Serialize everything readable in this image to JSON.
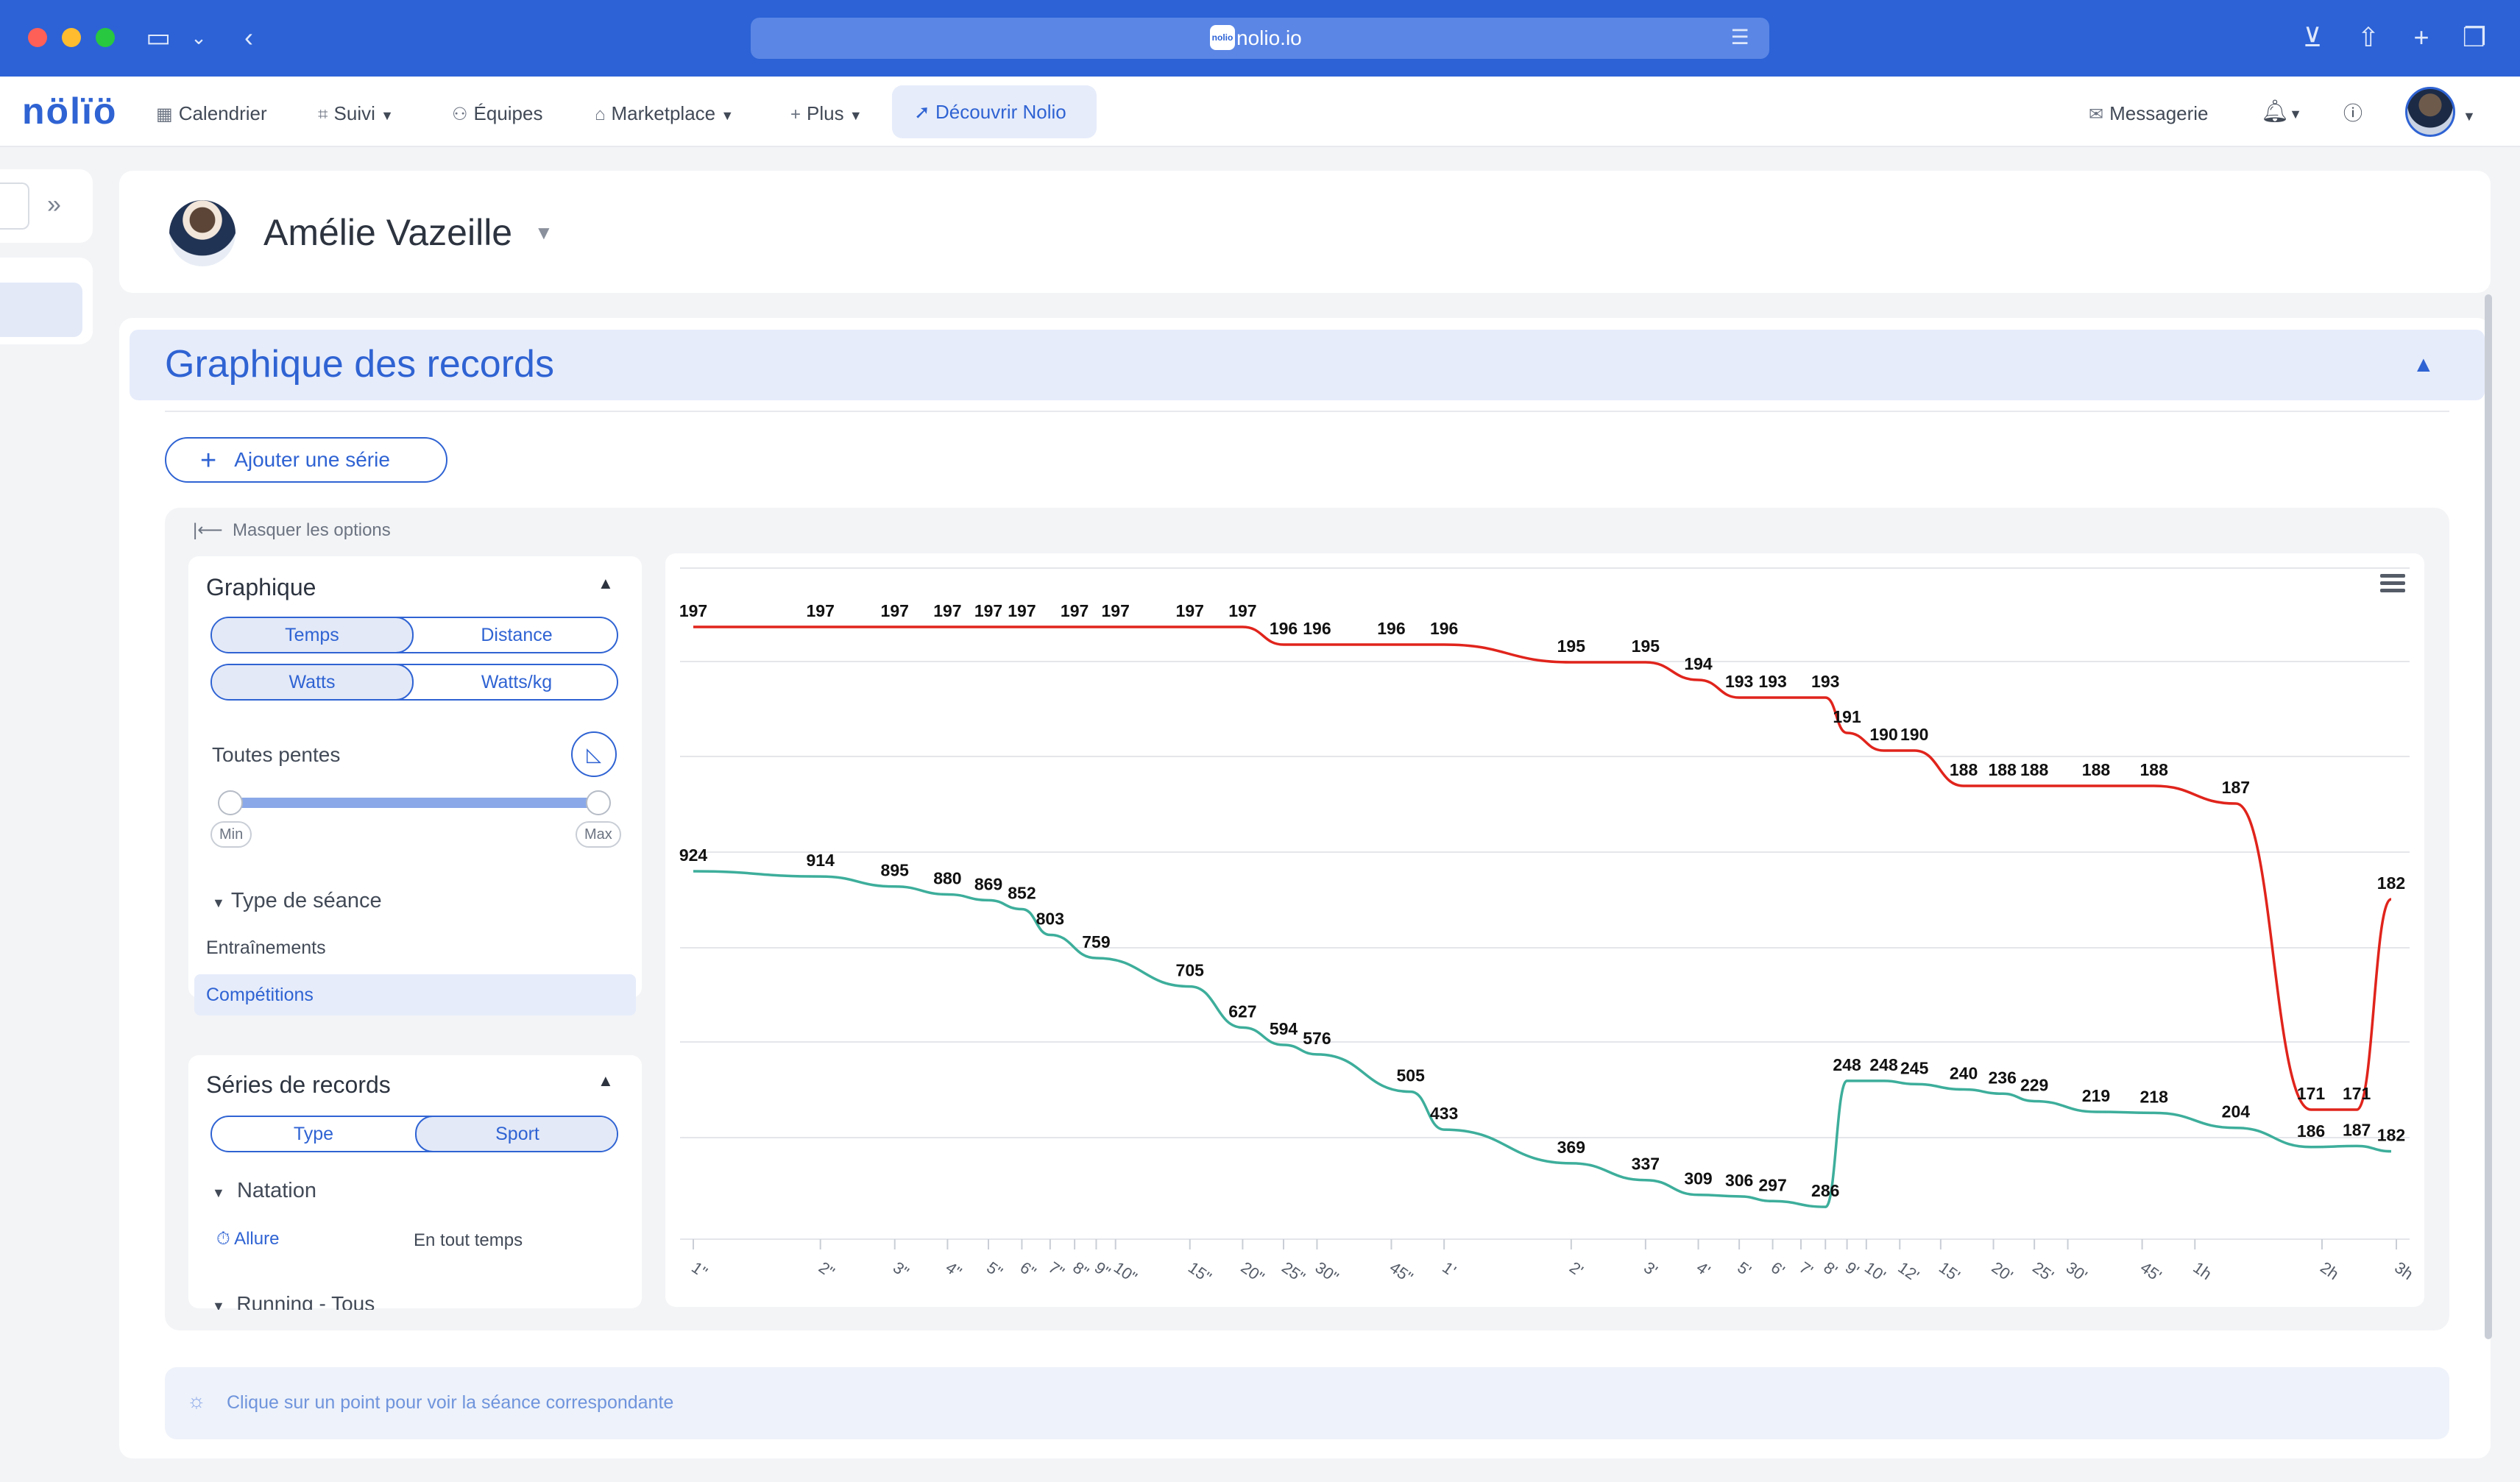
{
  "browser": {
    "url": "nolio.io",
    "favicon_text": "nolio"
  },
  "nav": {
    "logo": "nölïö",
    "items": [
      {
        "label": "Calendrier",
        "icon": "calendar-icon"
      },
      {
        "label": "Suivi",
        "icon": "chart-icon",
        "dropdown": true
      },
      {
        "label": "Équipes",
        "icon": "team-icon"
      },
      {
        "label": "Marketplace",
        "icon": "store-icon",
        "dropdown": true
      },
      {
        "label": "Plus",
        "icon": "plus-icon",
        "dropdown": true
      }
    ],
    "discover": "Découvrir Nolio",
    "messages": "Messagerie"
  },
  "athlete": {
    "name": "Amélie Vazeille"
  },
  "section": {
    "title": "Graphique des records",
    "add_series": "Ajouter une série",
    "hide_options": "Masquer les options",
    "hint": "Clique sur un point pour voir la séance correspondante"
  },
  "graph_options": {
    "title": "Graphique",
    "metric_tabs": [
      "Temps",
      "Distance"
    ],
    "metric_selected": "Temps",
    "power_tabs": [
      "Watts",
      "Watts/kg"
    ],
    "power_selected": "Watts",
    "slope_label": "Toutes pentes",
    "slider_min": "Min",
    "slider_max": "Max",
    "session_type_label": "Type de séance",
    "session_types": [
      "Entraînements",
      "Compétitions"
    ],
    "session_selected": "Compétitions"
  },
  "series_options": {
    "title": "Séries de records",
    "group_tabs": [
      "Type",
      "Sport"
    ],
    "group_selected": "Sport",
    "sport": "Natation",
    "metric": "Allure",
    "period": "En tout temps",
    "next_sport": "Running - Tous"
  },
  "chart_data": {
    "type": "line",
    "x_scale": "log",
    "x_ticks": [
      "1\"",
      "2\"",
      "3\"",
      "4\"",
      "5\"",
      "6\"",
      "7\"",
      "8\"",
      "9\"",
      "10\"",
      "15\"",
      "20\"",
      "25\"",
      "30\"",
      "45\"",
      "1'",
      "2'",
      "3'",
      "4'",
      "5'",
      "6'",
      "7'",
      "8'",
      "9'",
      "10'",
      "12'",
      "15'",
      "20'",
      "25'",
      "30'",
      "45'",
      "1h",
      "2h",
      "3h"
    ],
    "x_tick_seconds": [
      1,
      2,
      3,
      4,
      5,
      6,
      7,
      8,
      9,
      10,
      15,
      20,
      25,
      30,
      45,
      60,
      120,
      180,
      240,
      300,
      360,
      420,
      480,
      540,
      600,
      720,
      900,
      1200,
      1500,
      1800,
      2700,
      3600,
      7200,
      10800
    ],
    "series": [
      {
        "color": "#e0241c",
        "points": [
          {
            "x": 1,
            "y": 197
          },
          {
            "x": 2,
            "y": 197
          },
          {
            "x": 3,
            "y": 197
          },
          {
            "x": 4,
            "y": 197
          },
          {
            "x": 5,
            "y": 197
          },
          {
            "x": 6,
            "y": 197
          },
          {
            "x": 8,
            "y": 197
          },
          {
            "x": 10,
            "y": 197
          },
          {
            "x": 15,
            "y": 197
          },
          {
            "x": 20,
            "y": 197
          },
          {
            "x": 25,
            "y": 196
          },
          {
            "x": 30,
            "y": 196
          },
          {
            "x": 45,
            "y": 196
          },
          {
            "x": 60,
            "y": 196
          },
          {
            "x": 120,
            "y": 195
          },
          {
            "x": 180,
            "y": 195
          },
          {
            "x": 240,
            "y": 194
          },
          {
            "x": 300,
            "y": 193
          },
          {
            "x": 360,
            "y": 193
          },
          {
            "x": 480,
            "y": 193
          },
          {
            "x": 540,
            "y": 191
          },
          {
            "x": 660,
            "y": 190
          },
          {
            "x": 780,
            "y": 190
          },
          {
            "x": 1020,
            "y": 188
          },
          {
            "x": 1260,
            "y": 188
          },
          {
            "x": 1500,
            "y": 188
          },
          {
            "x": 2100,
            "y": 188
          },
          {
            "x": 2880,
            "y": 188
          },
          {
            "x": 4500,
            "y": 187
          },
          {
            "x": 6780,
            "y": 171
          },
          {
            "x": 8700,
            "y": 171
          },
          {
            "x": 10500,
            "y": 182
          }
        ],
        "labels": [
          {
            "x": 1,
            "y": 197,
            "t": "197"
          },
          {
            "x": 2,
            "y": 197,
            "t": "197"
          },
          {
            "x": 3,
            "y": 197,
            "t": "197"
          },
          {
            "x": 4,
            "y": 197,
            "t": "197"
          },
          {
            "x": 5,
            "y": 197,
            "t": "197"
          },
          {
            "x": 6,
            "y": 197,
            "t": "197"
          },
          {
            "x": 8,
            "y": 197,
            "t": "197"
          },
          {
            "x": 10,
            "y": 197,
            "t": "197"
          },
          {
            "x": 15,
            "y": 197,
            "t": "197"
          },
          {
            "x": 20,
            "y": 197,
            "t": "197"
          },
          {
            "x": 25,
            "y": 196,
            "t": "196"
          },
          {
            "x": 30,
            "y": 196,
            "t": "196"
          },
          {
            "x": 45,
            "y": 196,
            "t": "196"
          },
          {
            "x": 60,
            "y": 196,
            "t": "196"
          },
          {
            "x": 120,
            "y": 195,
            "t": "195"
          },
          {
            "x": 180,
            "y": 195,
            "t": "195"
          },
          {
            "x": 240,
            "y": 194,
            "t": "194"
          },
          {
            "x": 300,
            "y": 193,
            "t": "193"
          },
          {
            "x": 360,
            "y": 193,
            "t": "193"
          },
          {
            "x": 480,
            "y": 193,
            "t": "193"
          },
          {
            "x": 540,
            "y": 191,
            "t": "191"
          },
          {
            "x": 660,
            "y": 190,
            "t": "190"
          },
          {
            "x": 780,
            "y": 190,
            "t": "190"
          },
          {
            "x": 1020,
            "y": 188,
            "t": "188"
          },
          {
            "x": 1260,
            "y": 188,
            "t": "188"
          },
          {
            "x": 1500,
            "y": 188,
            "t": "188"
          },
          {
            "x": 2100,
            "y": 188,
            "t": "188"
          },
          {
            "x": 2880,
            "y": 188,
            "t": "188"
          },
          {
            "x": 4500,
            "y": 187,
            "t": "187"
          },
          {
            "x": 6780,
            "y": 171,
            "t": "171"
          },
          {
            "x": 8700,
            "y": 171,
            "t": "171"
          },
          {
            "x": 10500,
            "y": 182,
            "t": "182"
          }
        ]
      },
      {
        "color": "#3dae9b",
        "points": [
          {
            "x": 1,
            "y": 924
          },
          {
            "x": 2,
            "y": 914
          },
          {
            "x": 3,
            "y": 895
          },
          {
            "x": 4,
            "y": 880
          },
          {
            "x": 5,
            "y": 869
          },
          {
            "x": 6,
            "y": 852
          },
          {
            "x": 7,
            "y": 803
          },
          {
            "x": 9,
            "y": 759
          },
          {
            "x": 15,
            "y": 705
          },
          {
            "x": 20,
            "y": 627
          },
          {
            "x": 25,
            "y": 594
          },
          {
            "x": 30,
            "y": 576
          },
          {
            "x": 50,
            "y": 505
          },
          {
            "x": 60,
            "y": 433
          },
          {
            "x": 120,
            "y": 369
          },
          {
            "x": 180,
            "y": 337
          },
          {
            "x": 240,
            "y": 309
          },
          {
            "x": 300,
            "y": 306
          },
          {
            "x": 360,
            "y": 297
          },
          {
            "x": 480,
            "y": 286
          },
          {
            "x": 540,
            "y": 248
          },
          {
            "x": 660,
            "y": 248
          },
          {
            "x": 780,
            "y": 245
          },
          {
            "x": 1020,
            "y": 240
          },
          {
            "x": 1260,
            "y": 236
          },
          {
            "x": 1500,
            "y": 229
          },
          {
            "x": 2100,
            "y": 219
          },
          {
            "x": 2880,
            "y": 218
          },
          {
            "x": 4500,
            "y": 204
          },
          {
            "x": 6780,
            "y": 186
          },
          {
            "x": 8700,
            "y": 187
          },
          {
            "x": 10500,
            "y": 182
          }
        ],
        "labels": [
          {
            "x": 1,
            "y": 924,
            "t": "924"
          },
          {
            "x": 2,
            "y": 914,
            "t": "914"
          },
          {
            "x": 3,
            "y": 895,
            "t": "895"
          },
          {
            "x": 4,
            "y": 880,
            "t": "880"
          },
          {
            "x": 5,
            "y": 869,
            "t": "869"
          },
          {
            "x": 6,
            "y": 852,
            "t": "852"
          },
          {
            "x": 7,
            "y": 803,
            "t": "803"
          },
          {
            "x": 9,
            "y": 759,
            "t": "759"
          },
          {
            "x": 15,
            "y": 705,
            "t": "705"
          },
          {
            "x": 20,
            "y": 627,
            "t": "627"
          },
          {
            "x": 25,
            "y": 594,
            "t": "594"
          },
          {
            "x": 30,
            "y": 576,
            "t": "576"
          },
          {
            "x": 50,
            "y": 505,
            "t": "505"
          },
          {
            "x": 60,
            "y": 433,
            "t": "433"
          },
          {
            "x": 120,
            "y": 369,
            "t": "369"
          },
          {
            "x": 180,
            "y": 337,
            "t": "337"
          },
          {
            "x": 240,
            "y": 309,
            "t": "309"
          },
          {
            "x": 300,
            "y": 306,
            "t": "306"
          },
          {
            "x": 360,
            "y": 297,
            "t": "297"
          },
          {
            "x": 480,
            "y": 286,
            "t": "286"
          },
          {
            "x": 540,
            "y": 248,
            "t": "248"
          },
          {
            "x": 660,
            "y": 248,
            "t": "248"
          },
          {
            "x": 780,
            "y": 245,
            "t": "245"
          },
          {
            "x": 1020,
            "y": 240,
            "t": "240"
          },
          {
            "x": 1260,
            "y": 236,
            "t": "236"
          },
          {
            "x": 1500,
            "y": 229,
            "t": "229"
          },
          {
            "x": 2100,
            "y": 219,
            "t": "219"
          },
          {
            "x": 2880,
            "y": 218,
            "t": "218"
          },
          {
            "x": 4500,
            "y": 204,
            "t": "204"
          },
          {
            "x": 6780,
            "y": 186,
            "t": "186"
          },
          {
            "x": 8700,
            "y": 187,
            "t": "187"
          },
          {
            "x": 10500,
            "y": 182,
            "t": "182"
          }
        ]
      }
    ],
    "grid": true,
    "legend": "none"
  }
}
